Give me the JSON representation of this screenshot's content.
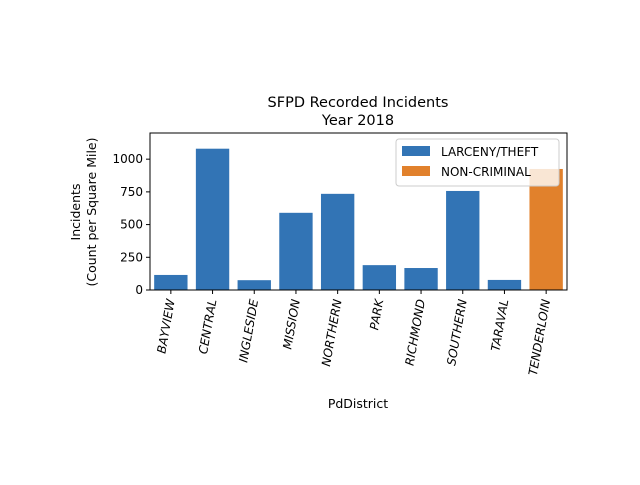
{
  "chart_data": {
    "type": "bar",
    "title": "SFPD Recorded Incidents",
    "subtitle": "Year 2018",
    "xlabel": "PdDistrict",
    "ylabel_line1": "Incidents",
    "ylabel_line2": "(Count per Square Mile)",
    "categories": [
      "BAYVIEW",
      "CENTRAL",
      "INGLESIDE",
      "MISSION",
      "NORTHERN",
      "PARK",
      "RICHMOND",
      "SOUTHERN",
      "TARAVAL",
      "TENDERLOIN"
    ],
    "values": [
      115,
      1080,
      75,
      590,
      735,
      190,
      168,
      757,
      77,
      925
    ],
    "bar_category": [
      "LARCENY/THEFT",
      "LARCENY/THEFT",
      "LARCENY/THEFT",
      "LARCENY/THEFT",
      "LARCENY/THEFT",
      "LARCENY/THEFT",
      "LARCENY/THEFT",
      "LARCENY/THEFT",
      "LARCENY/THEFT",
      "NON-CRIMINAL"
    ],
    "ylim": [
      0,
      1200
    ],
    "yticks": [
      0,
      250,
      500,
      750,
      1000
    ],
    "ytick_labels": [
      "0",
      "250",
      "500",
      "750",
      "1000"
    ],
    "grid": false,
    "legend": {
      "placement": "top-right",
      "entries": [
        {
          "label": "LARCENY/THEFT",
          "color": "#3274b5"
        },
        {
          "label": "NON-CRIMINAL",
          "color": "#e1812c"
        }
      ]
    },
    "colors": {
      "LARCENY/THEFT": "#3274b5",
      "NON-CRIMINAL": "#e1812c"
    }
  }
}
